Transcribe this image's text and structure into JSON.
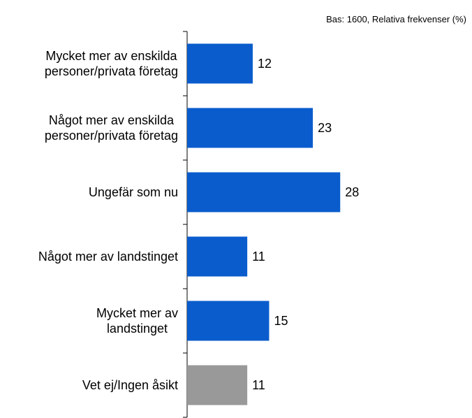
{
  "chart_data": {
    "type": "bar",
    "orientation": "horizontal",
    "subtitle": "Bas: 1600, Relativa frekvenser (%)",
    "categories": [
      "Mycket mer av enskilda\npersoner/privata företag",
      "Något mer av enskilda\npersoner/privata företag",
      "Ungefär som nu",
      "Något mer av landstinget",
      "Mycket mer av\nlandstinget",
      "Vet ej/Ingen åsikt"
    ],
    "values": [
      12,
      23,
      28,
      11,
      15,
      11
    ],
    "colors": [
      "#0a5ccc",
      "#0a5ccc",
      "#0a5ccc",
      "#0a5ccc",
      "#0a5ccc",
      "#999999"
    ]
  }
}
